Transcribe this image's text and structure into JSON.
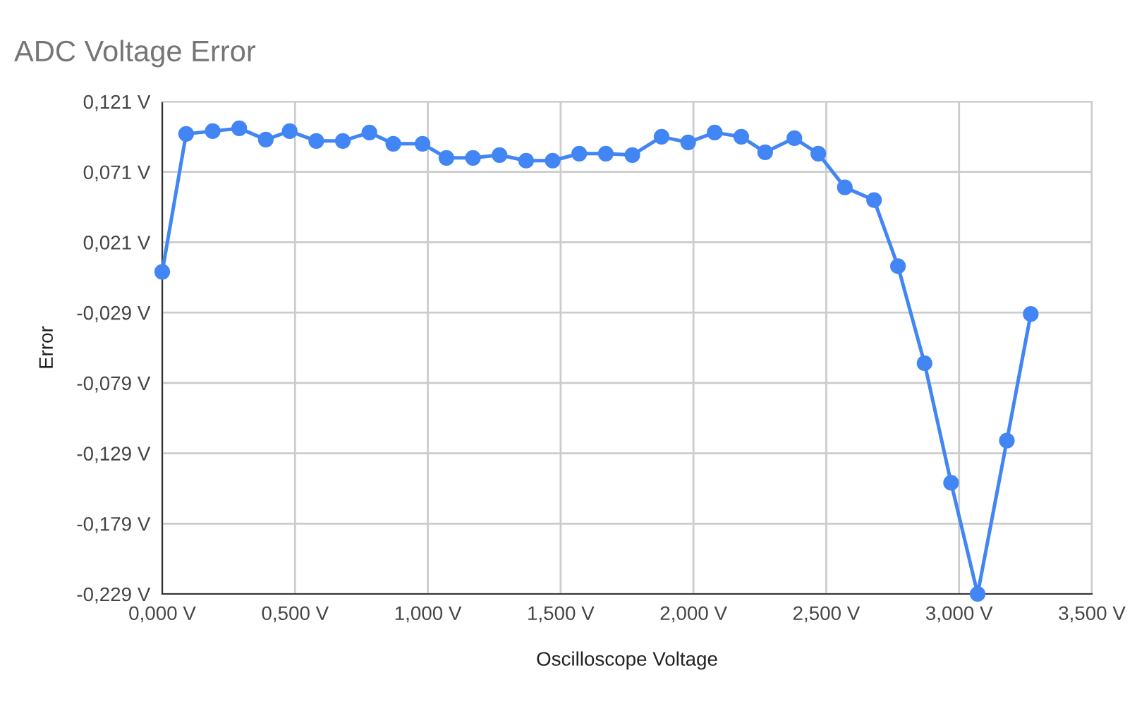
{
  "chart_data": {
    "type": "line",
    "title": "ADC Voltage Error",
    "xlabel": "Oscilloscope Voltage",
    "ylabel": "Error",
    "x": [
      0,
      0.09,
      0.19,
      0.29,
      0.39,
      0.48,
      0.58,
      0.68,
      0.78,
      0.87,
      0.98,
      1.07,
      1.17,
      1.27,
      1.37,
      1.47,
      1.57,
      1.67,
      1.77,
      1.88,
      1.98,
      2.08,
      2.18,
      2.27,
      2.38,
      2.47,
      2.57,
      2.68,
      2.77,
      2.87,
      2.97,
      3.07,
      3.18,
      3.27
    ],
    "series": [
      {
        "color": "#4285f4",
        "values": [
          0.0,
          0.098,
          0.1,
          0.102,
          0.094,
          0.1,
          0.093,
          0.093,
          0.099,
          0.091,
          0.091,
          0.081,
          0.081,
          0.083,
          0.079,
          0.079,
          0.084,
          0.084,
          0.083,
          0.096,
          0.092,
          0.099,
          0.096,
          0.085,
          0.095,
          0.084,
          0.06,
          0.051,
          0.004,
          -0.065,
          -0.15,
          -0.229,
          -0.12,
          -0.03
        ]
      }
    ],
    "xlim": [
      0,
      3.5
    ],
    "ylim": [
      -0.229,
      0.121
    ],
    "xticks": [
      {
        "value": 0,
        "label": "0,000 V"
      },
      {
        "value": 0.5,
        "label": "0,500 V"
      },
      {
        "value": 1,
        "label": "1,000 V"
      },
      {
        "value": 1.5,
        "label": "1,500 V"
      },
      {
        "value": 2,
        "label": "2,000 V"
      },
      {
        "value": 2.5,
        "label": "2,500 V"
      },
      {
        "value": 3,
        "label": "3,000 V"
      },
      {
        "value": 3.5,
        "label": "3,500 V"
      }
    ],
    "yticks": [
      {
        "value": -0.229,
        "label": "-0,229 V"
      },
      {
        "value": -0.179,
        "label": "-0,179 V"
      },
      {
        "value": -0.129,
        "label": "-0,129 V"
      },
      {
        "value": -0.079,
        "label": "-0,079 V"
      },
      {
        "value": -0.029,
        "label": "-0,029 V"
      },
      {
        "value": 0.021,
        "label": "0,021 V"
      },
      {
        "value": 0.071,
        "label": "0,071 V"
      },
      {
        "value": 0.121,
        "label": "0,121 V"
      }
    ],
    "grid": true,
    "marker": "circle",
    "line_style": "solid"
  }
}
